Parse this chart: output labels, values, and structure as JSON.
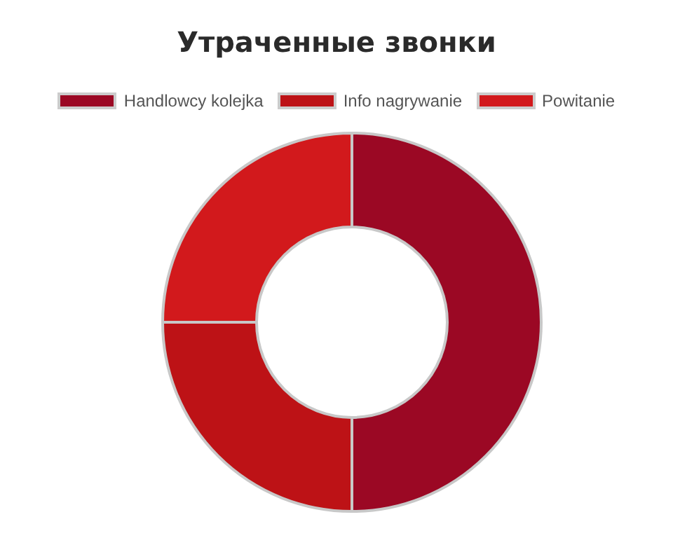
{
  "chart_data": {
    "type": "donut",
    "title": "Утраченные звонки",
    "categories": [
      "Handlowcy kolejka",
      "Info nagrywanie",
      "Powitanie"
    ],
    "values": [
      50,
      25,
      25
    ],
    "colors": [
      "#9b0824",
      "#bd1216",
      "#d2191c"
    ],
    "legend": "top"
  }
}
